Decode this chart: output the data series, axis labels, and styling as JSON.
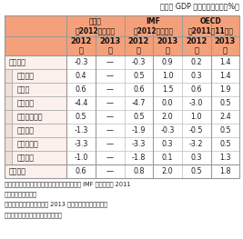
{
  "title_top": "（実質 GDP 成長率、前年比、%）",
  "col_headers_top": [
    "欧州委\n（2012年２月）",
    "IMF\n（2012年４月）",
    "OECD\n（2011年11月）"
  ],
  "col_headers_year": [
    "2012\n年",
    "2013\n年",
    "2012\n年",
    "2013\n年",
    "2012\n年",
    "2013\n年"
  ],
  "row_labels": [
    "ユーロ圏",
    "フランス",
    "ドイツ",
    "ギリシャ",
    "アイルランド",
    "イタリア",
    "ポルトガル",
    "スペイン",
    "英　　国"
  ],
  "row_indent": [
    false,
    true,
    true,
    true,
    true,
    true,
    true,
    true,
    false
  ],
  "row_data": [
    [
      "-0.3",
      "—",
      "-0.3",
      "0.9",
      "0.2",
      "1.4"
    ],
    [
      "0.4",
      "—",
      "0.5",
      "1.0",
      "0.3",
      "1.4"
    ],
    [
      "0.6",
      "—",
      "0.6",
      "1.5",
      "0.6",
      "1.9"
    ],
    [
      "-4.4",
      "—",
      "-4.7",
      "0.0",
      "-3.0",
      "0.5"
    ],
    [
      "0.5",
      "—",
      "0.5",
      "2.0",
      "1.0",
      "2.4"
    ],
    [
      "-1.3",
      "—",
      "-1.9",
      "-0.3",
      "-0.5",
      "0.5"
    ],
    [
      "-3.3",
      "—",
      "-3.3",
      "0.3",
      "-3.2",
      "0.5"
    ],
    [
      "-1.0",
      "—",
      "-1.8",
      "0.1",
      "0.3",
      "1.3"
    ],
    [
      "0.6",
      "—",
      "0.8",
      "2.0",
      "0.5",
      "1.8"
    ]
  ],
  "footer_lines": [
    "備考：アイルランド、ギリシャ、ポルトガルの IMF の見通しは 2011",
    "　　　年９月時点。",
    "　　　欧州委の見通しには 2013 年は記載されていない。",
    "資料：各種機関公表資料から作成。"
  ],
  "header_bg": "#F4A07A",
  "row_bg": "#FBF0EB",
  "row_bg_indent_left": "#F0E0D8",
  "text_color": "#222222",
  "header_text_color": "#111111",
  "border_color": "#999999",
  "inner_border_color": "#BBBBBB"
}
